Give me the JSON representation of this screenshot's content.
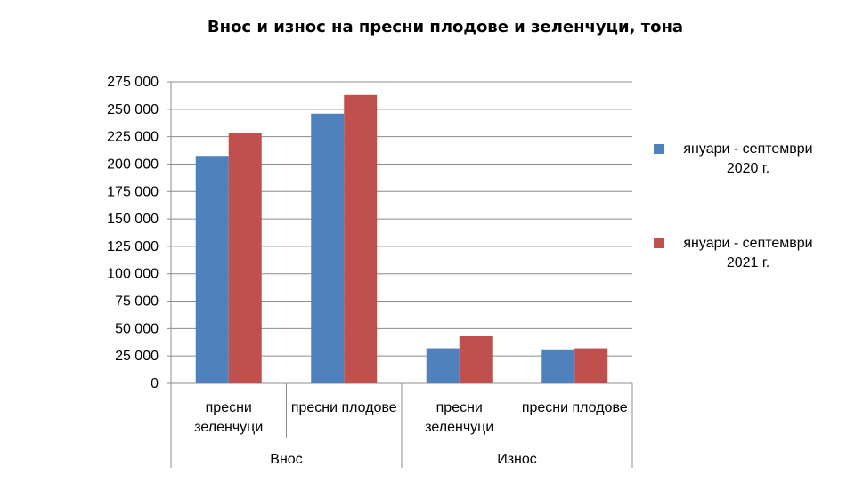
{
  "chart_data": {
    "type": "bar",
    "title": "Внос и износ на пресни плодове и зеленчуци, тона",
    "xlabel": "",
    "ylabel": "",
    "ylim": [
      0,
      275000
    ],
    "yticks": [
      "0",
      "25 000",
      "50 000",
      "75 000",
      "100 000",
      "125 000",
      "150 000",
      "175 000",
      "200 000",
      "225 000",
      "250 000",
      "275 000"
    ],
    "ytick_values": [
      0,
      25000,
      50000,
      75000,
      100000,
      125000,
      150000,
      175000,
      200000,
      225000,
      250000,
      275000
    ],
    "grid": true,
    "legend": "right",
    "groups": [
      {
        "label": "Внос",
        "categories": [
          "пресни зеленчуци",
          "пресни плодове"
        ]
      },
      {
        "label": "Износ",
        "categories": [
          "пресни зеленчуци",
          "пресни плодове"
        ]
      }
    ],
    "category_label_lines": [
      [
        "пресни",
        "зеленчуци"
      ],
      [
        "пресни плодове"
      ],
      [
        "пресни",
        "зеленчуци"
      ],
      [
        "пресни плодове"
      ]
    ],
    "series": [
      {
        "name": "януари - септември 2020 г.",
        "legend_lines": [
          "януари - септември",
          "2020 г."
        ],
        "color": "#4F81BD",
        "values": [
          207500,
          246000,
          32000,
          31000
        ]
      },
      {
        "name": "януари - септември 2021 г.",
        "legend_lines": [
          "януари - септември",
          "2021 г."
        ],
        "color": "#C0504D",
        "values": [
          228500,
          263000,
          43000,
          32000
        ]
      }
    ]
  }
}
